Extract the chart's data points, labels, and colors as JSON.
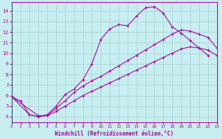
{
  "xlabel": "Windchill (Refroidissement éolien,°C)",
  "bg_color": "#c8eef0",
  "grid_color": "#aad8dc",
  "line_color": "#aa00aa",
  "x_min": 0,
  "x_max": 23,
  "y_min": 3.5,
  "y_max": 14.8,
  "yticks": [
    4,
    5,
    6,
    7,
    8,
    9,
    10,
    11,
    12,
    13,
    14
  ],
  "xticks": [
    0,
    1,
    2,
    3,
    4,
    5,
    6,
    7,
    8,
    9,
    10,
    11,
    12,
    13,
    14,
    15,
    16,
    17,
    18,
    19,
    20,
    21,
    22,
    23
  ],
  "line1_x": [
    0,
    1,
    2,
    3,
    4,
    5,
    6,
    7,
    8,
    9,
    10,
    11,
    12,
    13,
    14,
    15,
    16,
    17,
    18,
    19,
    20,
    21,
    22
  ],
  "line1_y": [
    5.9,
    5.5,
    4.2,
    4.0,
    4.2,
    5.0,
    6.1,
    6.6,
    7.5,
    9.0,
    11.3,
    12.3,
    12.7,
    12.6,
    13.5,
    14.3,
    14.4,
    13.8,
    12.5,
    11.9,
    11.2,
    10.5,
    9.8
  ],
  "line2_x": [
    0,
    3,
    4,
    5,
    6,
    7,
    8,
    9,
    10,
    11,
    12,
    13,
    14,
    15,
    16,
    17,
    18,
    19,
    20,
    21,
    22,
    23
  ],
  "line2_y": [
    5.9,
    4.1,
    4.1,
    4.8,
    5.5,
    6.3,
    6.9,
    7.4,
    7.8,
    8.3,
    8.8,
    9.3,
    9.8,
    10.3,
    10.8,
    11.3,
    11.8,
    12.2,
    12.1,
    11.8,
    11.5,
    10.5
  ],
  "line3_x": [
    0,
    2,
    3,
    4,
    5,
    6,
    7,
    8,
    9,
    10,
    11,
    12,
    13,
    14,
    15,
    16,
    17,
    18,
    19,
    20,
    21,
    22,
    23
  ],
  "line3_y": [
    5.9,
    4.2,
    4.0,
    4.1,
    4.5,
    5.0,
    5.5,
    6.0,
    6.4,
    6.8,
    7.2,
    7.6,
    8.0,
    8.4,
    8.8,
    9.2,
    9.6,
    10.0,
    10.4,
    10.6,
    10.5,
    10.3,
    9.8
  ]
}
